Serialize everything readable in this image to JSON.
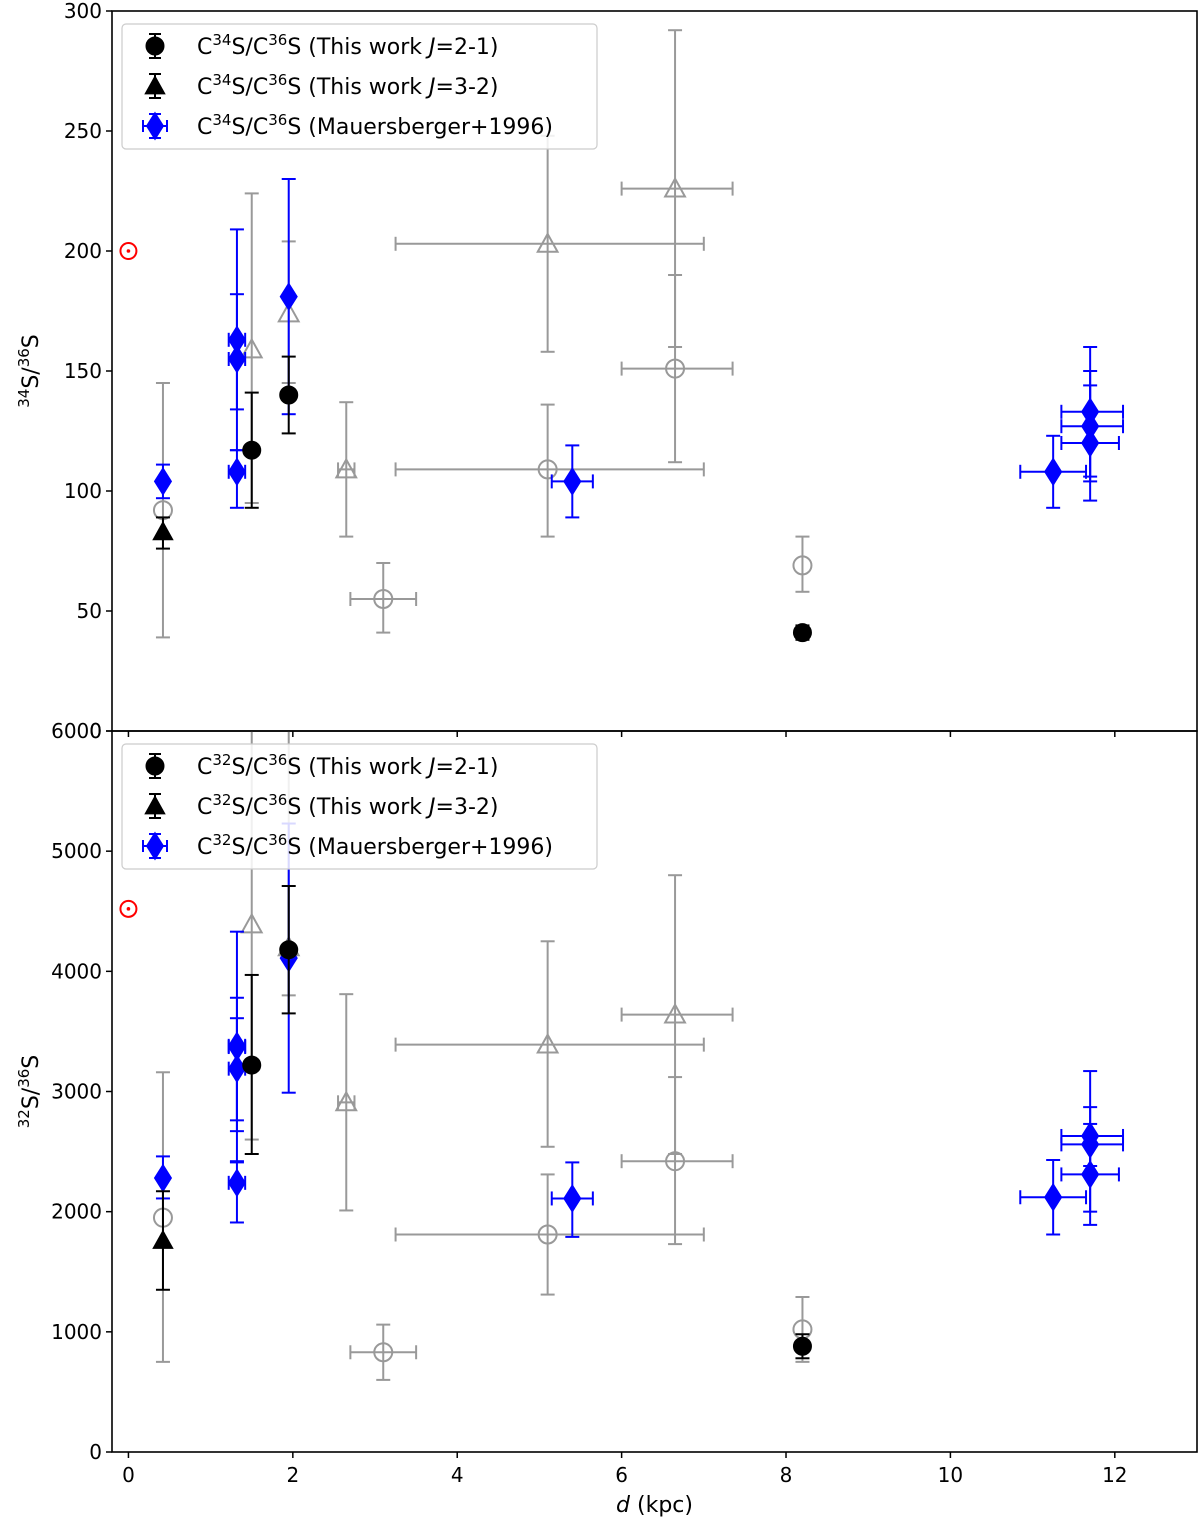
{
  "chart_data": [
    {
      "type": "scatter",
      "panel": "top",
      "title": "",
      "ylabel_parts": [
        "34",
        "S/",
        "36",
        "S"
      ],
      "xlabel": "",
      "xlim": [
        -0.2,
        13.0
      ],
      "ylim": [
        0,
        300
      ],
      "yticks": [
        0,
        50,
        100,
        150,
        200,
        250,
        300
      ],
      "xticks": [
        0,
        2,
        4,
        6,
        8,
        10,
        12
      ],
      "legend_position": "top-left",
      "legend": [
        {
          "marker": "circle",
          "color": "#000000",
          "text_parts": [
            "C",
            "34",
            "S/C",
            "36",
            "S (This work ",
            "J",
            "=2-1)"
          ]
        },
        {
          "marker": "triangle",
          "color": "#000000",
          "text_parts": [
            "C",
            "34",
            "S/C",
            "36",
            "S (This work ",
            "J",
            "=3-2)"
          ]
        },
        {
          "marker": "diamond",
          "color": "#0000ff",
          "text_parts": [
            "C",
            "34",
            "S/C",
            "36",
            "S (Mauersberger+1996)"
          ]
        }
      ],
      "sun": {
        "x": 0.0,
        "y": 200
      },
      "series": [
        {
          "name": "This work J=2-1",
          "marker": "circle",
          "filled": true,
          "color": "#000000",
          "points": [
            {
              "x": 1.5,
              "y": 117,
              "ylo": 93,
              "yhi": 141
            },
            {
              "x": 1.95,
              "y": 140,
              "ylo": 124,
              "yhi": 156
            },
            {
              "x": 8.2,
              "y": 41,
              "ylo": 38,
              "yhi": 44
            }
          ]
        },
        {
          "name": "This work J=3-2",
          "marker": "triangle",
          "filled": true,
          "color": "#000000",
          "points": [
            {
              "x": 0.42,
              "y": 83,
              "ylo": 76,
              "yhi": 89
            }
          ]
        },
        {
          "name": "This work J=2-1 (gray)",
          "marker": "circle",
          "filled": false,
          "color": "#999999",
          "points": [
            {
              "x": 0.42,
              "y": 92,
              "ylo": 39,
              "yhi": 145
            },
            {
              "x": 3.1,
              "y": 55,
              "ylo": 41,
              "yhi": 70,
              "xlo": 2.7,
              "xhi": 3.5
            },
            {
              "x": 5.1,
              "y": 109,
              "ylo": 81,
              "yhi": 136,
              "xlo": 3.25,
              "xhi": 7.0
            },
            {
              "x": 6.65,
              "y": 151,
              "ylo": 112,
              "yhi": 190,
              "xlo": 6.0,
              "xhi": 7.35
            },
            {
              "x": 8.2,
              "y": 69,
              "ylo": 58,
              "yhi": 81
            }
          ]
        },
        {
          "name": "This work J=3-2 (gray)",
          "marker": "triangle",
          "filled": false,
          "color": "#999999",
          "points": [
            {
              "x": 1.5,
              "y": 159,
              "ylo": 95,
              "yhi": 224
            },
            {
              "x": 1.95,
              "y": 174,
              "ylo": 145,
              "yhi": 204
            },
            {
              "x": 2.65,
              "y": 109,
              "ylo": 81,
              "yhi": 137,
              "xlo": 2.55,
              "xhi": 2.75
            },
            {
              "x": 5.1,
              "y": 203,
              "ylo": 158,
              "yhi": 248,
              "xlo": 3.25,
              "xhi": 7.0
            },
            {
              "x": 6.65,
              "y": 226,
              "ylo": 160,
              "yhi": 292,
              "xlo": 6.0,
              "xhi": 7.35
            }
          ]
        },
        {
          "name": "Mauersberger+1996",
          "marker": "diamond",
          "filled": true,
          "color": "#0000ff",
          "points": [
            {
              "x": 0.42,
              "y": 104,
              "ylo": 97,
              "yhi": 111
            },
            {
              "x": 1.32,
              "y": 108,
              "ylo": 93,
              "yhi": 117,
              "xlo": 1.22,
              "xhi": 1.42
            },
            {
              "x": 1.32,
              "y": 155,
              "ylo": 134,
              "yhi": 182,
              "xlo": 1.22,
              "xhi": 1.42
            },
            {
              "x": 1.32,
              "y": 163,
              "ylo": 117,
              "yhi": 209,
              "xlo": 1.22,
              "xhi": 1.42
            },
            {
              "x": 1.95,
              "y": 181,
              "ylo": 132,
              "yhi": 230
            },
            {
              "x": 5.4,
              "y": 104,
              "ylo": 89,
              "yhi": 119,
              "xlo": 5.15,
              "xhi": 5.65
            },
            {
              "x": 11.25,
              "y": 108,
              "ylo": 93,
              "yhi": 123,
              "xlo": 10.85,
              "xhi": 11.65
            },
            {
              "x": 11.7,
              "y": 120,
              "ylo": 96,
              "yhi": 144,
              "xlo": 11.35,
              "xhi": 12.05
            },
            {
              "x": 11.7,
              "y": 127,
              "ylo": 104,
              "yhi": 150,
              "xlo": 11.35,
              "xhi": 12.1
            },
            {
              "x": 11.7,
              "y": 133,
              "ylo": 106,
              "yhi": 160,
              "xlo": 11.35,
              "xhi": 12.1
            }
          ]
        }
      ]
    },
    {
      "type": "scatter",
      "panel": "bottom",
      "title": "",
      "ylabel_parts": [
        "32",
        "S/",
        "36",
        "S"
      ],
      "xlabel_parts": [
        "d",
        " (kpc)"
      ],
      "xlim": [
        -0.2,
        13.0
      ],
      "ylim": [
        0,
        6000
      ],
      "yticks": [
        0,
        1000,
        2000,
        3000,
        4000,
        5000,
        6000
      ],
      "xticks": [
        0,
        2,
        4,
        6,
        8,
        10,
        12
      ],
      "legend_position": "top-left",
      "legend": [
        {
          "marker": "circle",
          "color": "#000000",
          "text_parts": [
            "C",
            "32",
            "S/C",
            "36",
            "S (This work ",
            "J",
            "=2-1)"
          ]
        },
        {
          "marker": "triangle",
          "color": "#000000",
          "text_parts": [
            "C",
            "32",
            "S/C",
            "36",
            "S (This work ",
            "J",
            "=3-2)"
          ]
        },
        {
          "marker": "diamond",
          "color": "#0000ff",
          "text_parts": [
            "C",
            "32",
            "S/C",
            "36",
            "S (Mauersberger+1996)"
          ]
        }
      ],
      "sun": {
        "x": 0.0,
        "y": 4520
      },
      "series": [
        {
          "name": "This work J=2-1",
          "marker": "circle",
          "filled": true,
          "color": "#000000",
          "points": [
            {
              "x": 1.5,
              "y": 3220,
              "ylo": 2480,
              "yhi": 3970
            },
            {
              "x": 1.95,
              "y": 4180,
              "ylo": 3650,
              "yhi": 4710
            },
            {
              "x": 8.2,
              "y": 880,
              "ylo": 780,
              "yhi": 980
            }
          ]
        },
        {
          "name": "This work J=3-2",
          "marker": "triangle",
          "filled": true,
          "color": "#000000",
          "points": [
            {
              "x": 0.42,
              "y": 1760,
              "ylo": 1350,
              "yhi": 2170
            }
          ]
        },
        {
          "name": "This work J=2-1 (gray)",
          "marker": "circle",
          "filled": false,
          "color": "#999999",
          "points": [
            {
              "x": 0.42,
              "y": 1950,
              "ylo": 750,
              "yhi": 3160
            },
            {
              "x": 3.1,
              "y": 830,
              "ylo": 600,
              "yhi": 1060,
              "xlo": 2.7,
              "xhi": 3.5
            },
            {
              "x": 5.1,
              "y": 1810,
              "ylo": 1310,
              "yhi": 2310,
              "xlo": 3.25,
              "xhi": 7.0
            },
            {
              "x": 6.65,
              "y": 2420,
              "ylo": 1730,
              "yhi": 3120,
              "xlo": 6.0,
              "xhi": 7.35
            },
            {
              "x": 8.2,
              "y": 1020,
              "ylo": 750,
              "yhi": 1290
            }
          ]
        },
        {
          "name": "This work J=3-2 (gray)",
          "marker": "triangle",
          "filled": false,
          "color": "#999999",
          "points": [
            {
              "x": 1.5,
              "y": 4390,
              "ylo": 2600,
              "yhi": 6180
            },
            {
              "x": 1.95,
              "y": 4200,
              "ylo": 3800,
              "yhi": 6100
            },
            {
              "x": 2.65,
              "y": 2910,
              "ylo": 2010,
              "yhi": 3810,
              "xlo": 2.55,
              "xhi": 2.75
            },
            {
              "x": 5.1,
              "y": 3390,
              "ylo": 2540,
              "yhi": 4250,
              "xlo": 3.25,
              "xhi": 7.0
            },
            {
              "x": 6.65,
              "y": 3640,
              "ylo": 2480,
              "yhi": 4800,
              "xlo": 6.0,
              "xhi": 7.35
            }
          ]
        },
        {
          "name": "Mauersberger+1996",
          "marker": "diamond",
          "filled": true,
          "color": "#0000ff",
          "points": [
            {
              "x": 0.42,
              "y": 2280,
              "ylo": 2110,
              "yhi": 2460
            },
            {
              "x": 1.32,
              "y": 2240,
              "ylo": 1910,
              "yhi": 2410,
              "xlo": 1.22,
              "xhi": 1.42
            },
            {
              "x": 1.32,
              "y": 3190,
              "ylo": 2670,
              "yhi": 3610,
              "xlo": 1.22,
              "xhi": 1.42
            },
            {
              "x": 1.32,
              "y": 3370,
              "ylo": 2760,
              "yhi": 3780,
              "xlo": 1.22,
              "xhi": 1.42
            },
            {
              "x": 1.32,
              "y": 3380,
              "ylo": 2420,
              "yhi": 4330,
              "xlo": 1.22,
              "xhi": 1.42
            },
            {
              "x": 1.95,
              "y": 4110,
              "ylo": 2990,
              "yhi": 5230
            },
            {
              "x": 5.4,
              "y": 2110,
              "ylo": 1790,
              "yhi": 2410,
              "xlo": 5.15,
              "xhi": 5.65
            },
            {
              "x": 11.25,
              "y": 2120,
              "ylo": 1810,
              "yhi": 2430,
              "xlo": 10.85,
              "xhi": 11.65
            },
            {
              "x": 11.7,
              "y": 2310,
              "ylo": 1890,
              "yhi": 2730,
              "xlo": 11.35,
              "xhi": 12.05
            },
            {
              "x": 11.7,
              "y": 2560,
              "ylo": 2000,
              "yhi": 3170,
              "xlo": 11.35,
              "xhi": 12.1
            },
            {
              "x": 11.7,
              "y": 2630,
              "ylo": 2380,
              "yhi": 2870,
              "xlo": 11.35,
              "xhi": 12.1
            }
          ]
        }
      ]
    }
  ]
}
